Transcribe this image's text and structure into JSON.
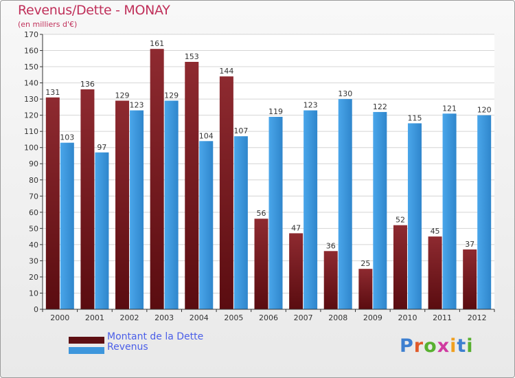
{
  "title": "Revenus/Dette - MONAY",
  "subtitle": "(en milliers d'€)",
  "logo_text": "Proxiti",
  "colors": {
    "dette": "#7a1a1e",
    "revenus": "#3d96dc",
    "title": "#c0305a",
    "legend_text": "#4a5ee8"
  },
  "chart_data": {
    "type": "bar",
    "categories": [
      "2000",
      "2001",
      "2002",
      "2003",
      "2004",
      "2005",
      "2006",
      "2007",
      "2008",
      "2009",
      "2010",
      "2011",
      "2012"
    ],
    "series": [
      {
        "name": "Montant de la Dette",
        "values": [
          131,
          136,
          129,
          161,
          153,
          144,
          56,
          47,
          36,
          25,
          52,
          45,
          37
        ]
      },
      {
        "name": "Revenus",
        "values": [
          103,
          97,
          123,
          129,
          104,
          107,
          119,
          123,
          130,
          122,
          115,
          121,
          120
        ]
      }
    ],
    "title": "Revenus/Dette - MONAY",
    "ylabel": "(en milliers d'€)",
    "ylim": [
      0,
      170
    ],
    "ytick_step": 10,
    "grid": true,
    "legend": "bottom-left"
  }
}
